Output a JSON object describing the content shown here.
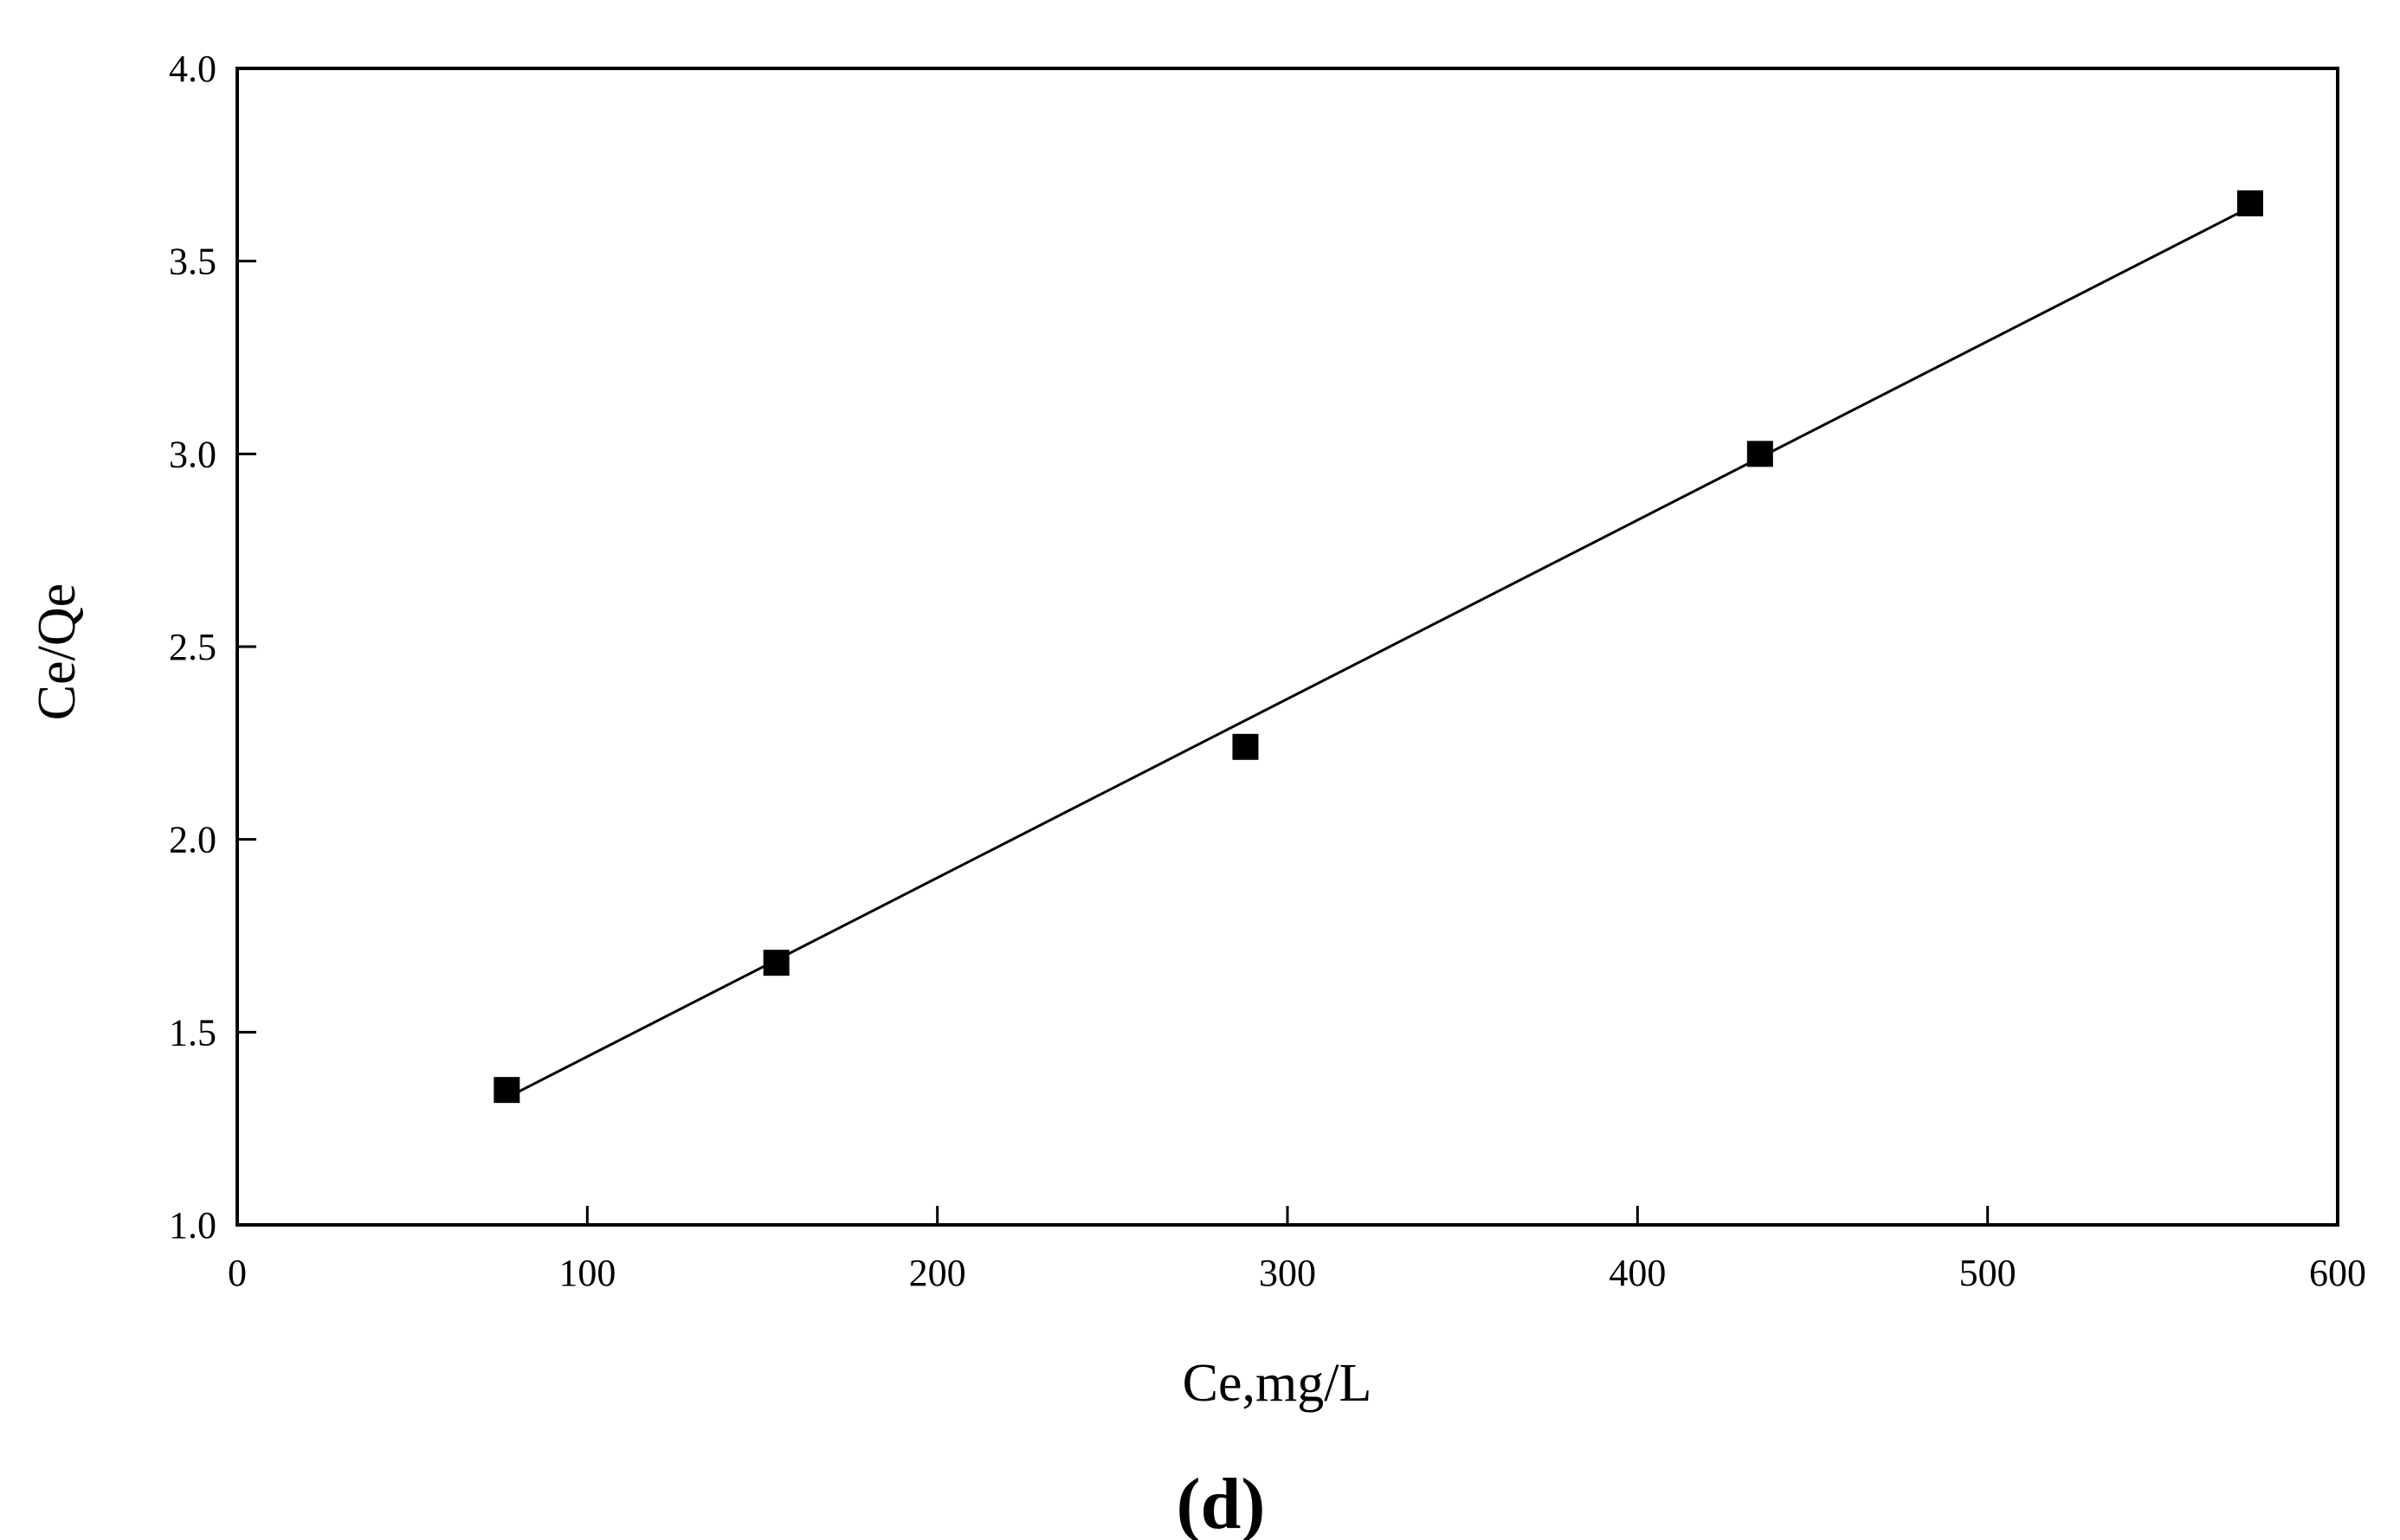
{
  "chart_data": {
    "type": "scatter",
    "title": "",
    "xlabel": "Ce,mg/L",
    "ylabel": "Ce/Qe",
    "panel_label": "(d)",
    "xlim": [
      0,
      600
    ],
    "ylim": [
      1.0,
      4.0
    ],
    "x_ticks": [
      0,
      100,
      200,
      300,
      400,
      500,
      600
    ],
    "x_tick_labels": [
      "0",
      "100",
      "200",
      "300",
      "400",
      "500",
      "600"
    ],
    "y_ticks": [
      1.0,
      1.5,
      2.0,
      2.5,
      3.0,
      3.5,
      4.0
    ],
    "y_tick_labels": [
      "1.0",
      "1.5",
      "2.0",
      "2.5",
      "3.0",
      "3.5",
      "4.0"
    ],
    "grid": false,
    "legend": "none",
    "series": [
      {
        "marker": "square",
        "color": "#000000",
        "x": [
          77,
          154,
          288,
          435,
          575
        ],
        "y": [
          1.35,
          1.68,
          2.24,
          3.0,
          3.65
        ]
      }
    ],
    "fit_line": {
      "x": [
        77,
        575
      ],
      "y": [
        1.33,
        3.64
      ],
      "color": "#000000"
    }
  }
}
